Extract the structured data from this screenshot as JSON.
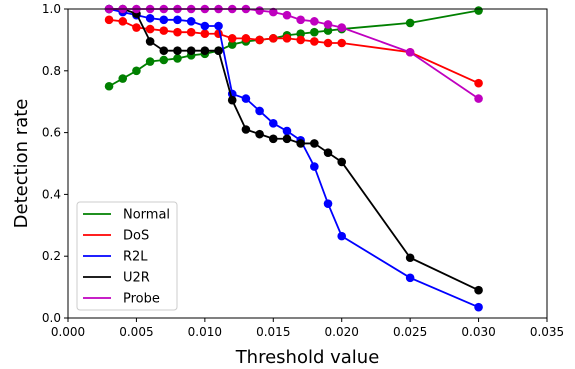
{
  "chart_data": {
    "type": "line",
    "xlabel": "Threshold value",
    "ylabel": "Detection rate",
    "xlim": [
      0.0,
      0.035
    ],
    "ylim": [
      0.0,
      1.0
    ],
    "xticks": [
      "0.000",
      "0.005",
      "0.010",
      "0.015",
      "0.020",
      "0.025",
      "0.030",
      "0.035"
    ],
    "yticks": [
      "0.0",
      "0.2",
      "0.4",
      "0.6",
      "0.8",
      "1.0"
    ],
    "grid": false,
    "legend_position": "lower-left",
    "x": [
      0.003,
      0.004,
      0.005,
      0.006,
      0.007,
      0.008,
      0.009,
      0.01,
      0.011,
      0.012,
      0.013,
      0.014,
      0.015,
      0.016,
      0.017,
      0.018,
      0.019,
      0.02,
      0.025,
      0.03
    ],
    "series": [
      {
        "name": "Normal",
        "color": "#008000",
        "values": [
          0.75,
          0.775,
          0.8,
          0.83,
          0.835,
          0.84,
          0.85,
          0.855,
          0.865,
          0.885,
          0.895,
          0.9,
          0.905,
          0.915,
          0.92,
          0.925,
          0.93,
          0.935,
          0.955,
          0.995
        ]
      },
      {
        "name": "DoS",
        "color": "#ff0000",
        "values": [
          0.965,
          0.96,
          0.94,
          0.935,
          0.93,
          0.925,
          0.925,
          0.92,
          0.92,
          0.905,
          0.905,
          0.9,
          0.905,
          0.905,
          0.9,
          0.895,
          0.89,
          0.89,
          0.86,
          0.76
        ]
      },
      {
        "name": "R2L",
        "color": "#0000ff",
        "values": [
          1.0,
          0.99,
          0.98,
          0.97,
          0.965,
          0.965,
          0.96,
          0.945,
          0.945,
          0.725,
          0.71,
          0.67,
          0.63,
          0.605,
          0.575,
          0.49,
          0.37,
          0.265,
          0.13,
          0.035
        ]
      },
      {
        "name": "U2R",
        "color": "#000000",
        "values": [
          1.0,
          1.0,
          0.985,
          0.895,
          0.865,
          0.865,
          0.865,
          0.865,
          0.865,
          0.705,
          0.61,
          0.595,
          0.58,
          0.58,
          0.565,
          0.565,
          0.535,
          0.505,
          0.195,
          0.09
        ]
      },
      {
        "name": "Probe",
        "color": "#bf00bf",
        "values": [
          1.0,
          1.0,
          1.0,
          1.0,
          1.0,
          1.0,
          1.0,
          1.0,
          1.0,
          1.0,
          1.0,
          0.995,
          0.99,
          0.98,
          0.965,
          0.96,
          0.95,
          0.94,
          0.86,
          0.71
        ]
      }
    ]
  }
}
